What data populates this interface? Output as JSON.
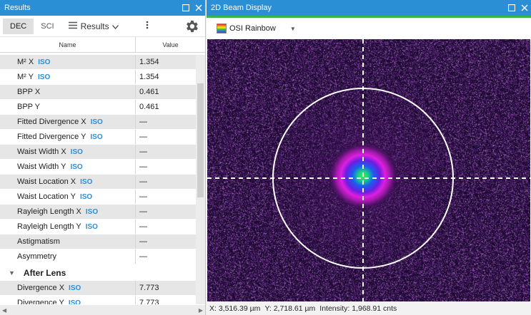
{
  "results_panel": {
    "title": "Results",
    "tabs": [
      "DEC",
      "SCI"
    ],
    "results_menu_label": "Results",
    "columns": {
      "name": "Name",
      "value": "Value"
    },
    "rows": [
      {
        "name": "M² X",
        "iso": "ISO",
        "value": "1.354"
      },
      {
        "name": "M² Y",
        "iso": "ISO",
        "value": "1.354"
      },
      {
        "name": "BPP X",
        "iso": "",
        "value": "0.461"
      },
      {
        "name": "BPP Y",
        "iso": "",
        "value": "0.461"
      },
      {
        "name": "Fitted Divergence X",
        "iso": "ISO",
        "value": "—"
      },
      {
        "name": "Fitted Divergence Y",
        "iso": "ISO",
        "value": "—"
      },
      {
        "name": "Waist Width X",
        "iso": "ISO",
        "value": "—"
      },
      {
        "name": "Waist Width Y",
        "iso": "ISO",
        "value": "—"
      },
      {
        "name": "Waist Location X",
        "iso": "ISO",
        "value": "—"
      },
      {
        "name": "Waist Location Y",
        "iso": "ISO",
        "value": "—"
      },
      {
        "name": "Rayleigh Length X",
        "iso": "ISO",
        "value": "—"
      },
      {
        "name": "Rayleigh Length Y",
        "iso": "ISO",
        "value": "—"
      },
      {
        "name": "Astigmatism",
        "iso": "",
        "value": "—"
      },
      {
        "name": "Asymmetry",
        "iso": "",
        "value": "—"
      }
    ],
    "group_after_lens": "After Lens",
    "after_rows": [
      {
        "name": "Divergence X",
        "iso": "ISO",
        "value": "7.773"
      },
      {
        "name": "Divergence Y",
        "iso": "ISO",
        "value": "7.773"
      }
    ]
  },
  "beam_panel": {
    "title": "2D Beam Display",
    "palette": "OSI Rainbow",
    "status": {
      "x": "X: 3,516.39 µm",
      "y": "Y: 2,718.61 µm",
      "intensity": "Intensity: 1,968.91 cnts"
    }
  },
  "colors": {
    "accent": "#2b8fd6",
    "iso": "#2b8fd6",
    "strip": "#39b54a"
  }
}
